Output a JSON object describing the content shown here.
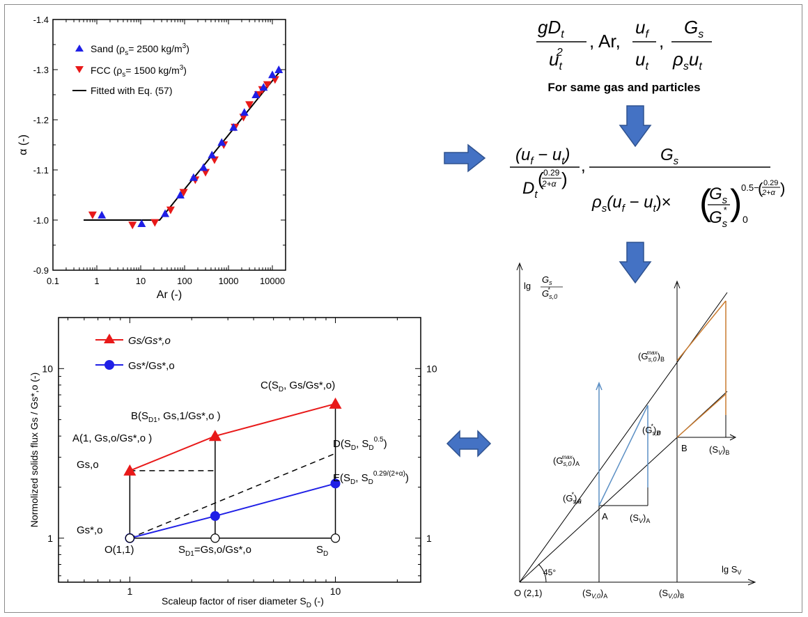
{
  "colors": {
    "blue": "#1f1fe6",
    "red": "#e81919",
    "arrow": "#4472c4",
    "arrow_edge": "#2f528f",
    "panel_blue": "#5b8fc4",
    "panel_orange": "#c97a2e"
  },
  "chart_top": {
    "ylabel": "α (-)",
    "xlabel": "Ar (-)",
    "xticks": [
      "0.1",
      "1",
      "10",
      "100",
      "1000",
      "10000"
    ],
    "yticks": [
      "-0.9",
      "-1.0",
      "-1.1",
      "-1.2",
      "-1.3",
      "-1.4"
    ],
    "legend": {
      "sand_pre": "Sand (ρ",
      "sand_sub": "s",
      "sand_post": "= 2500 kg/m",
      "sand_sup": "3",
      "sand_close": ")",
      "fcc_pre": "FCC (ρ",
      "fcc_sub": "s",
      "fcc_post": "= 1500 kg/m",
      "fcc_sup": "3",
      "fcc_close": ")",
      "fit": "Fitted with Eq. (57)"
    }
  },
  "chart_bottom": {
    "ylabel": "Normolized solids flux Gs / Gs*,o (-)",
    "xlabel": "Scaleup factor of riser diameter S",
    "xlabel_sub": "D",
    "xlabel_end": " (-)",
    "left_ticks": [
      "1",
      "10"
    ],
    "right_ticks": [
      "1",
      "10"
    ],
    "xticks": [
      "1",
      "10"
    ],
    "legend": {
      "red": "Gs/Gs*,o",
      "blue": "Gs*/Gs*,o"
    },
    "labels": {
      "A": "A(1, Gs,o/Gs*,o )",
      "B_pre": "B(S",
      "B_sub": "D1",
      "B_post": ", Gs,1/Gs*,o )",
      "C_pre": "C(S",
      "C_sub": "D",
      "C_post": ", Gs/Gs*,o)",
      "D_pre": "D(S",
      "D_sub": "D",
      "D_mid": ", S",
      "D_sub2": "D",
      "D_sup": "0.5",
      "D_close": ")",
      "E_pre": "E(S",
      "E_sub": "D",
      "E_mid": ", S",
      "E_sub2": "D",
      "E_sup": "0.29/(2+α)",
      "E_close": ")",
      "Gso": "Gs,o",
      "Gsso": "Gs*,o",
      "O": "O(1,1)",
      "SD1_pre": "S",
      "SD1_sub": "D1",
      "SD1_post": "=Gs,o/Gs*,o",
      "SD_main": "S",
      "SD_sub": "D"
    }
  },
  "formula_top": {
    "g": "gD",
    "g_sub": "t",
    "u2": "u",
    "u2_sub": "t",
    "u2_sup": "2",
    "ar": ", Ar,",
    "uf": "u",
    "uf_sub": "f",
    "ut": "u",
    "ut_sub": "t",
    "gs": "G",
    "gs_sub": "s",
    "rho": "ρ",
    "rho_sub": "s",
    "ut2": "u",
    "ut2_sub": "t",
    "caption": "For same gas and particles"
  },
  "formula_mid": {
    "num1": "(u",
    "num1_f": "f",
    "num1_mid": " − u",
    "num1_t": "t",
    "num1_close": ")",
    "den1": "D",
    "den1_sub": "t",
    "exp_num": "0.29",
    "exp_den": "2+α",
    "gs": "G",
    "gs_sub": "s",
    "den2_rho": "ρ",
    "den2_rho_sub": "s",
    "den2_mid": "(u",
    "den2_f": "f",
    "den2_mid2": " − u",
    "den2_t": "t",
    "den2_close": ")×",
    "frac_num": "G",
    "frac_num_sub": "s",
    "frac_den": "G",
    "frac_den_sub": "s",
    "frac_den_sup": "*",
    "zero": "0",
    "exp2": "0.5−",
    "exp2_num": "0.29",
    "exp2_den": "2+α"
  },
  "diagram": {
    "ylabel_lg": "lg",
    "ylabel_num": "G",
    "ylabel_num_sub": "s",
    "ylabel_den": "G",
    "ylabel_den_sub": "s,0",
    "ylabel_den_sup": "*",
    "xlabel_lg": "lg S",
    "xlabel_sub": "V",
    "origin": "O (2,1)",
    "angle": "45°",
    "A": "A",
    "B": "B",
    "SvA": "(S",
    "SvA_sub": "V",
    "SvA_close": ")",
    "SvA_A": "A",
    "SvB": "(S",
    "SvB_sub": "V",
    "SvB_close": ")",
    "SvB_B": "B",
    "Sv0A": "(S",
    "Sv0A_sub": "V,0",
    "Sv0A_close": ")",
    "Sv0A_A": "A",
    "Sv0B": "(S",
    "Sv0B_sub": "V,0",
    "Sv0B_close": ")",
    "Sv0B_B": "B",
    "GmaxA": "(G",
    "GmaxA_sub": "s,0",
    "GmaxA_sup": "max",
    "GmaxA_close": ")",
    "GmaxA_A": "A",
    "GmaxB": "(G",
    "GmaxB_sub": "s,0",
    "GmaxB_sup": "max",
    "GmaxB_close": ")",
    "GmaxB_B": "B",
    "GstarA": "(G",
    "GstarA_sub": "s,0",
    "GstarA_sup": "*",
    "GstarA_close": ")",
    "GstarA_A": "A",
    "GstarB": "(G",
    "GstarB_sub": "s,0",
    "GstarB_sup": "*",
    "GstarB_close": ")",
    "GstarB_B": "B"
  },
  "chart_data": [
    {
      "type": "scatter",
      "title": "",
      "xlabel": "Ar (-)",
      "ylabel": "α (-)",
      "xscale": "log",
      "xlim": [
        0.1,
        20000
      ],
      "ylim": [
        -0.9,
        -1.4
      ],
      "legend_position": "top-left",
      "series": [
        {
          "name": "Sand (ρs= 2500 kg/m3)",
          "marker": "triangle-up",
          "color": "#1f1fe6",
          "points": [
            [
              1.3,
              -1.01
            ],
            [
              10.5,
              -0.993
            ],
            [
              36,
              -1.013
            ],
            [
              80,
              -1.05
            ],
            [
              160,
              -1.085
            ],
            [
              270,
              -1.105
            ],
            [
              420,
              -1.13
            ],
            [
              700,
              -1.155
            ],
            [
              1300,
              -1.185
            ],
            [
              2300,
              -1.215
            ],
            [
              4200,
              -1.25
            ],
            [
              6300,
              -1.265
            ],
            [
              10000,
              -1.29
            ],
            [
              14000,
              -1.3
            ]
          ]
        },
        {
          "name": "FCC (ρs= 1500 kg/m3)",
          "marker": "triangle-down",
          "color": "#e81919",
          "points": [
            [
              0.8,
              -1.01
            ],
            [
              6.5,
              -0.99
            ],
            [
              21,
              -0.995
            ],
            [
              48,
              -1.02
            ],
            [
              95,
              -1.055
            ],
            [
              175,
              -1.08
            ],
            [
              300,
              -1.095
            ],
            [
              480,
              -1.12
            ],
            [
              780,
              -1.15
            ],
            [
              1400,
              -1.185
            ],
            [
              2200,
              -1.205
            ],
            [
              3000,
              -1.23
            ],
            [
              4800,
              -1.25
            ],
            [
              5900,
              -1.26
            ],
            [
              7700,
              -1.27
            ],
            [
              11500,
              -1.28
            ]
          ]
        },
        {
          "name": "Fitted with Eq. (57)",
          "type": "line",
          "color": "#000000",
          "points": [
            [
              0.5,
              -1.0
            ],
            [
              27,
              -1.0
            ],
            [
              16000,
              -1.3
            ]
          ]
        }
      ]
    },
    {
      "type": "line",
      "title": "",
      "xlabel": "Scaleup factor of riser diameter SD (-)",
      "ylabel": "Normolized solids flux Gs / Gs*,o (-)",
      "xscale": "log",
      "yscale": "log",
      "xlim": [
        0.45,
        26
      ],
      "ylim": [
        0.55,
        20
      ],
      "legend_position": "top-left",
      "series": [
        {
          "name": "Gs/Gs*,o",
          "color": "#e81919",
          "marker": "triangle-up",
          "x": [
            1,
            2.6,
            10
          ],
          "y": [
            2.5,
            4.0,
            6.2
          ]
        },
        {
          "name": "Gs*/Gs*,o",
          "color": "#1f1fe6",
          "marker": "circle",
          "x": [
            1,
            2.6,
            10
          ],
          "y": [
            1.0,
            1.35,
            2.1
          ]
        },
        {
          "style": "dashed",
          "color": "#000000",
          "x": [
            1,
            10
          ],
          "y": [
            1.0,
            3.16
          ]
        }
      ]
    }
  ]
}
